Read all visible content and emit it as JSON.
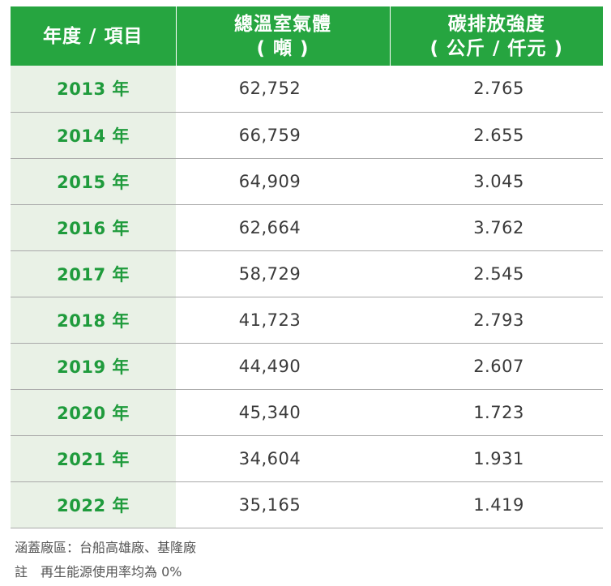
{
  "table": {
    "headers": {
      "year": "年度 / 項目",
      "ghg_title": "總溫室氣體",
      "ghg_unit": "( 噸 )",
      "intensity_title": "碳排放強度",
      "intensity_unit": "( 公斤 / 仟元 )"
    },
    "rows": [
      {
        "year": "2013 年",
        "ghg": "62,752",
        "intensity": "2.765"
      },
      {
        "year": "2014 年",
        "ghg": "66,759",
        "intensity": "2.655"
      },
      {
        "year": "2015 年",
        "ghg": "64,909",
        "intensity": "3.045"
      },
      {
        "year": "2016 年",
        "ghg": "62,664",
        "intensity": "3.762"
      },
      {
        "year": "2017 年",
        "ghg": "58,729",
        "intensity": "2.545"
      },
      {
        "year": "2018 年",
        "ghg": "41,723",
        "intensity": "2.793"
      },
      {
        "year": "2019 年",
        "ghg": "44,490",
        "intensity": "2.607"
      },
      {
        "year": "2020 年",
        "ghg": "45,340",
        "intensity": "1.723"
      },
      {
        "year": "2021 年",
        "ghg": "34,604",
        "intensity": "1.931"
      },
      {
        "year": "2022 年",
        "ghg": "35,165",
        "intensity": "1.419"
      }
    ]
  },
  "notes": {
    "coverage": "涵蓋廠區：台船高雄廠、基隆廠",
    "footnote": "註　再生能源使用率均為 0%"
  },
  "colors": {
    "header_bg": "#26a540",
    "year_col_bg": "#e9f1e6",
    "year_text": "#1f9b3c"
  }
}
